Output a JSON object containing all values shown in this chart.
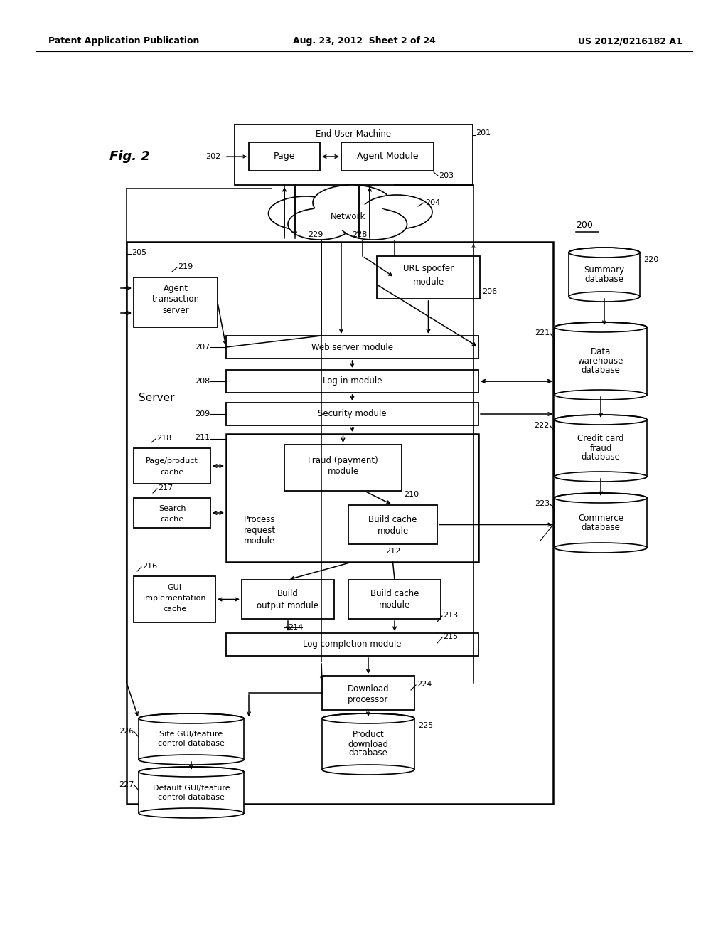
{
  "bg_color": "#ffffff",
  "title_left": "Patent Application Publication",
  "title_center": "Aug. 23, 2012  Sheet 2 of 24",
  "title_right": "US 2012/0216182 A1"
}
